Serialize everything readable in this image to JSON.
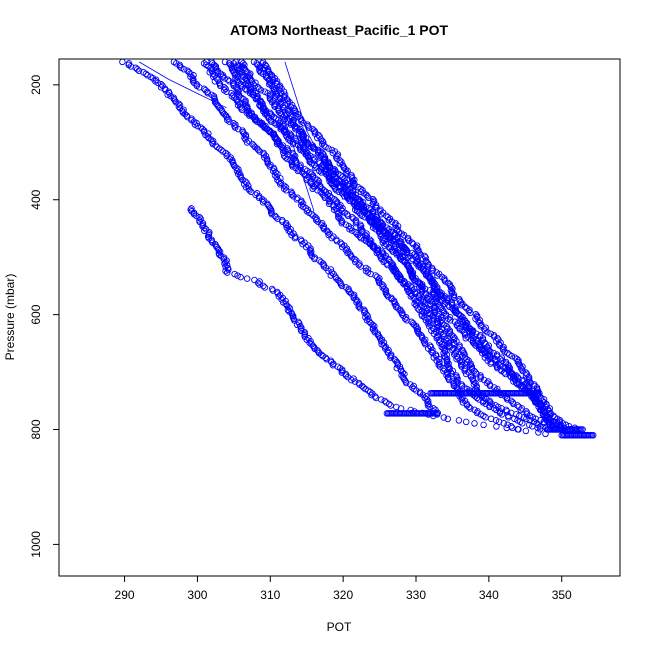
{
  "chart_data": {
    "type": "scatter",
    "title": "ATOM3 Northeast_Pacific_1 POT",
    "xlabel": "POT",
    "ylabel": "Pressure (mbar)",
    "xlim": [
      281,
      358
    ],
    "ylim": [
      1055,
      155
    ],
    "y_inverted": true,
    "grid": false,
    "legend": "none",
    "x_ticks": [
      290,
      300,
      310,
      320,
      330,
      340,
      350
    ],
    "y_ticks": [
      200,
      400,
      600,
      800,
      1000
    ],
    "point_color": "#0000ff",
    "profiles": [
      {
        "p": [
          160,
          175,
          190,
          200,
          215,
          230,
          245,
          260,
          280,
          300,
          320,
          340,
          360,
          380,
          400,
          420,
          440,
          460,
          480,
          500,
          520,
          540,
          560,
          580,
          600,
          620,
          640,
          660,
          680,
          700,
          720,
          740,
          760,
          775
        ],
        "t": [
          290,
          292,
          294,
          295,
          296,
          297,
          298,
          299,
          301,
          302,
          304,
          305,
          306,
          307,
          309,
          310,
          312,
          313,
          315,
          316,
          318,
          319,
          321,
          322,
          323,
          324,
          325,
          326,
          327,
          328,
          329,
          331,
          332,
          333
        ]
      },
      {
        "p": [
          160,
          180,
          200,
          220,
          240,
          260,
          280,
          300,
          320,
          340,
          360,
          380,
          400,
          420,
          440,
          460,
          480,
          500,
          520,
          540,
          560,
          580,
          600,
          620,
          640,
          660,
          680,
          700,
          720,
          740,
          760,
          780,
          800
        ],
        "t": [
          297,
          299,
          300,
          302,
          303,
          304,
          306,
          307,
          309,
          310,
          311,
          312,
          314,
          315,
          317,
          318,
          320,
          321,
          323,
          325,
          326,
          327,
          328,
          330,
          331,
          332,
          333,
          334,
          335,
          336,
          337,
          340,
          344
        ]
      },
      {
        "p": [
          160,
          180,
          200,
          220,
          240,
          260,
          280,
          300,
          320,
          340,
          360,
          380,
          400,
          420,
          440,
          460,
          480,
          500,
          520,
          540,
          560,
          580,
          600,
          620,
          640,
          660,
          680,
          700,
          720,
          740,
          760,
          780,
          800
        ],
        "t": [
          302,
          303,
          305,
          306,
          307,
          308,
          310,
          311,
          312,
          313,
          315,
          316,
          318,
          319,
          320,
          322,
          324,
          325,
          327,
          328,
          330,
          331,
          332,
          333,
          334,
          335,
          336,
          337,
          338,
          339,
          341,
          345,
          348
        ]
      },
      {
        "p": [
          160,
          180,
          200,
          220,
          240,
          260,
          280,
          300,
          320,
          340,
          360,
          380,
          400,
          420,
          440,
          460,
          480,
          500,
          520,
          540,
          560,
          580,
          600,
          620,
          640,
          660,
          680,
          700,
          720,
          740,
          760,
          780,
          800
        ],
        "t": [
          305,
          306,
          307,
          308,
          309,
          310,
          312,
          313,
          315,
          316,
          318,
          319,
          321,
          322,
          324,
          325,
          326,
          328,
          329,
          330,
          332,
          333,
          334,
          336,
          337,
          339,
          340,
          342,
          344,
          346,
          347,
          348,
          350
        ]
      },
      {
        "p": [
          160,
          180,
          200,
          220,
          240,
          260,
          280,
          300,
          320,
          340,
          360,
          380,
          400,
          420,
          440,
          460,
          480,
          500,
          520,
          540,
          560,
          580,
          600,
          620,
          640,
          660,
          680,
          700,
          720,
          740,
          760,
          780,
          800
        ],
        "t": [
          308,
          309,
          310,
          311,
          312,
          313,
          314,
          315,
          317,
          318,
          319,
          320,
          322,
          323,
          325,
          326,
          328,
          329,
          331,
          332,
          333,
          334,
          336,
          337,
          339,
          340,
          342,
          343,
          345,
          346,
          347,
          348,
          351
        ]
      },
      {
        "p": [
          160,
          180,
          200,
          220,
          240,
          260,
          280,
          300,
          320,
          340,
          360,
          380,
          400,
          420,
          440,
          460,
          480,
          500,
          520,
          540,
          560,
          580,
          600,
          620,
          640,
          660,
          680,
          700,
          720,
          740,
          760,
          780,
          800
        ],
        "t": [
          309,
          310,
          311,
          312,
          313,
          314,
          316,
          317,
          319,
          320,
          321,
          322,
          324,
          325,
          327,
          328,
          330,
          331,
          332,
          334,
          335,
          336,
          338,
          339,
          341,
          342,
          344,
          345,
          346,
          347,
          348,
          349,
          352
        ]
      },
      {
        "p": [
          160,
          180,
          200,
          220,
          240,
          260,
          280,
          300,
          320,
          340,
          360,
          380,
          400,
          420,
          440,
          460,
          480,
          500,
          520,
          540,
          560,
          580,
          600,
          620,
          640,
          660,
          680,
          700,
          720,
          740,
          760,
          780,
          800
        ],
        "t": [
          304,
          305,
          306,
          308,
          309,
          311,
          312,
          314,
          315,
          317,
          318,
          320,
          321,
          323,
          324,
          326,
          327,
          328,
          329,
          330,
          331,
          332,
          333,
          334,
          335,
          336,
          337,
          338,
          340,
          342,
          344,
          346,
          350
        ]
      },
      {
        "p": [
          160,
          180,
          200,
          220,
          240,
          260,
          280,
          300,
          320,
          340,
          360,
          380,
          400,
          420,
          440,
          460,
          480,
          500,
          520,
          540,
          560,
          580,
          600,
          620,
          640,
          660,
          680,
          700,
          720,
          740,
          760,
          780,
          800
        ],
        "t": [
          301,
          302,
          303,
          305,
          306,
          308,
          310,
          311,
          313,
          314,
          316,
          317,
          319,
          320,
          322,
          323,
          324,
          326,
          327,
          328,
          329,
          330,
          331,
          332,
          333,
          334,
          334,
          335,
          336,
          338,
          340,
          343,
          347
        ]
      },
      {
        "p": [
          160,
          180,
          200,
          220,
          240,
          260,
          280,
          300,
          320,
          340,
          360,
          380,
          400,
          420,
          440,
          460,
          480,
          500,
          520,
          540,
          560,
          580,
          600,
          620,
          640,
          660,
          680,
          700,
          720,
          740,
          760,
          780,
          800
        ],
        "t": [
          306,
          307,
          308,
          310,
          311,
          312,
          314,
          315,
          317,
          318,
          320,
          321,
          322,
          324,
          325,
          327,
          328,
          330,
          331,
          332,
          333,
          335,
          336,
          337,
          338,
          339,
          341,
          343,
          344,
          346,
          347,
          348,
          349
        ]
      },
      {
        "p": [
          415,
          430,
          450,
          470,
          490,
          510,
          525,
          535,
          540,
          550,
          560,
          580,
          600,
          620,
          640,
          660,
          680,
          700,
          720,
          740,
          760,
          775,
          790,
          800,
          808
        ],
        "t": [
          299,
          300,
          301,
          302,
          303,
          304,
          304,
          306,
          308,
          309,
          311,
          312,
          313,
          314,
          315,
          316,
          318,
          320,
          322,
          324,
          327,
          332,
          338,
          344,
          348
        ]
      }
    ],
    "connected_segments": [
      {
        "x": [
          309,
          311.5,
          313,
          314.5,
          316
        ],
        "y": [
          160,
          240,
          300,
          360,
          420
        ]
      },
      {
        "x": [
          312,
          313.5,
          315,
          317.5,
          320
        ],
        "y": [
          160,
          220,
          280,
          340,
          400
        ]
      },
      {
        "x": [
          292,
          296,
          300,
          304
        ],
        "y": [
          160,
          190,
          215,
          240
        ]
      }
    ],
    "dense_horizontal_runs": [
      {
        "p": 772,
        "t_from": 326,
        "t_to": 333
      },
      {
        "p": 737,
        "t_from": 332,
        "t_to": 347
      },
      {
        "p": 800,
        "t_from": 348,
        "t_to": 353
      },
      {
        "p": 810,
        "t_from": 350,
        "t_to": 354.5
      }
    ]
  }
}
